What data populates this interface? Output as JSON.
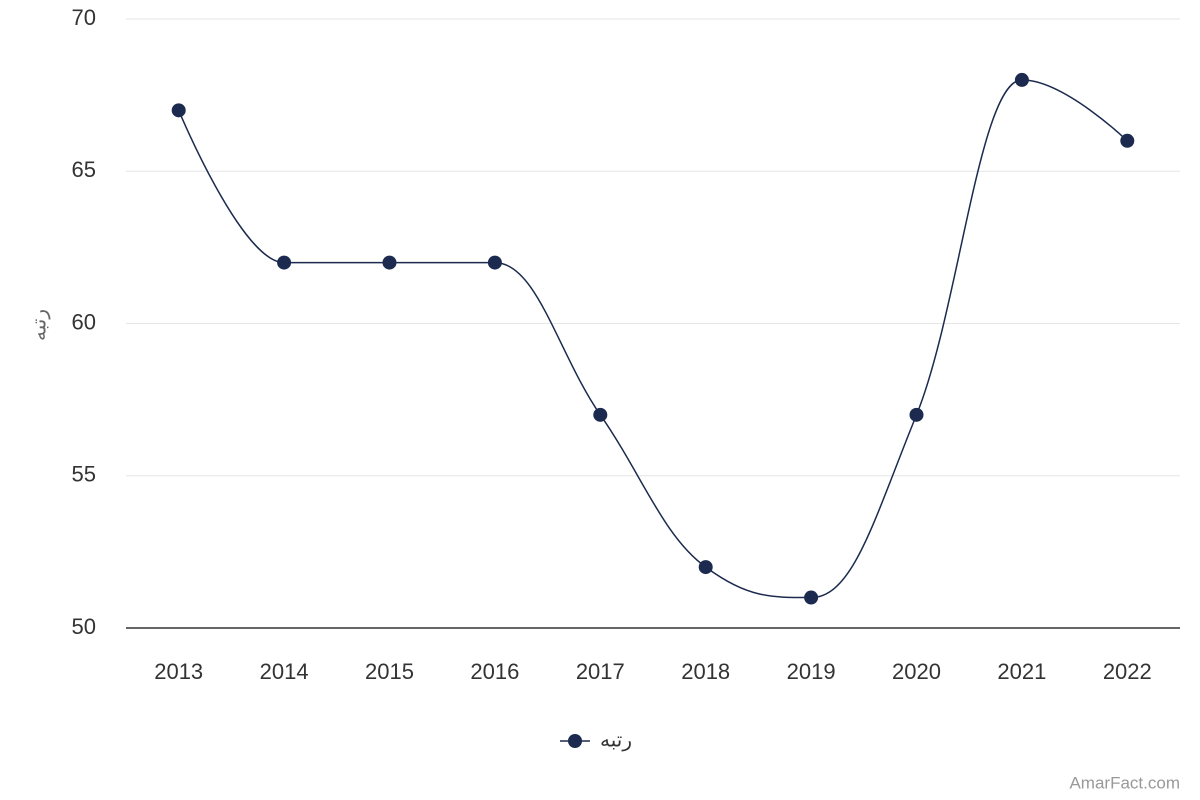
{
  "chart_data": {
    "type": "line",
    "categories": [
      "2013",
      "2014",
      "2015",
      "2016",
      "2017",
      "2018",
      "2019",
      "2020",
      "2021",
      "2022"
    ],
    "series": [
      {
        "name": "رتبه",
        "color": "#1b2a4e",
        "values": [
          67,
          62,
          62,
          62,
          57,
          52,
          51,
          57,
          68,
          66
        ]
      }
    ],
    "y_label": "رتبه",
    "ylim": [
      50,
      70
    ],
    "yticks": [
      50,
      55,
      60,
      65,
      70
    ],
    "grid": true,
    "smooth": true,
    "legend": "bottom",
    "credits": "AmarFact.com"
  }
}
